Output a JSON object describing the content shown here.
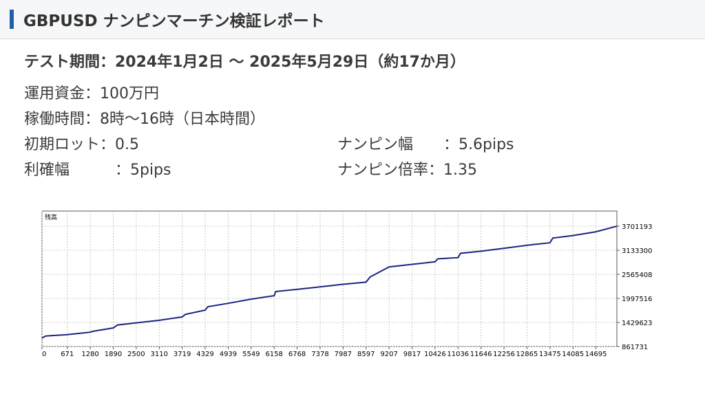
{
  "header": {
    "title": "GBPUSD ナンピンマーチン検証レポート"
  },
  "test_period": "テスト期間：2024年1月2日 〜 2025年5月29日（約17か月）",
  "params": {
    "capital": {
      "label": "運用資金",
      "colon": "：",
      "value": "100万円"
    },
    "hours": {
      "label": "稼働時間",
      "colon": "：",
      "value": "8時〜16時（日本時間）"
    },
    "initial_lot": {
      "label": "初期ロット",
      "colon": "：",
      "value": "0.5"
    },
    "take_profit": {
      "label": "利確幅",
      "colon": "：",
      "value": "5pips"
    },
    "nanpin_width": {
      "label": "ナンピン幅",
      "colon": "：",
      "value": "5.6pips"
    },
    "nanpin_ratio": {
      "label": "ナンピン倍率",
      "colon": "：",
      "value": "1.35"
    }
  },
  "chart_data": {
    "type": "line",
    "title": "残高",
    "xlabel": "",
    "ylabel": "",
    "x_ticks": [
      "0",
      "671",
      "1280",
      "1890",
      "2500",
      "3110",
      "3719",
      "4329",
      "4939",
      "5549",
      "6158",
      "6768",
      "7378",
      "7987",
      "8597",
      "9207",
      "9817",
      "10426",
      "11036",
      "11646",
      "12256",
      "12865",
      "13475",
      "14085",
      "14695"
    ],
    "y_ticks": [
      "861731",
      "1429623",
      "1997516",
      "2565408",
      "3133300",
      "3701193"
    ],
    "xlim": [
      0,
      15250
    ],
    "ylim": [
      861731,
      3701193
    ],
    "grid": true,
    "line_color": "#1a237e",
    "series": [
      {
        "x": [
          0,
          60,
          100,
          671,
          1280,
          1350,
          1890,
          2000,
          2500,
          3110,
          3719,
          3800,
          4329,
          4400,
          4939,
          5549,
          6158,
          6200,
          6768,
          7378,
          7987,
          8597,
          8700,
          9207,
          9817,
          10426,
          10500,
          11036,
          11100,
          11646,
          12256,
          12865,
          13475,
          13550,
          14085,
          14695,
          15250
        ],
        "y": [
          1060000,
          1090000,
          1110000,
          1140000,
          1200000,
          1220000,
          1300000,
          1370000,
          1420000,
          1480000,
          1560000,
          1620000,
          1720000,
          1800000,
          1880000,
          1980000,
          2060000,
          2160000,
          2210000,
          2270000,
          2330000,
          2380000,
          2500000,
          2740000,
          2800000,
          2860000,
          2930000,
          2960000,
          3060000,
          3110000,
          3180000,
          3250000,
          3310000,
          3420000,
          3480000,
          3570000,
          3701193
        ]
      }
    ]
  }
}
